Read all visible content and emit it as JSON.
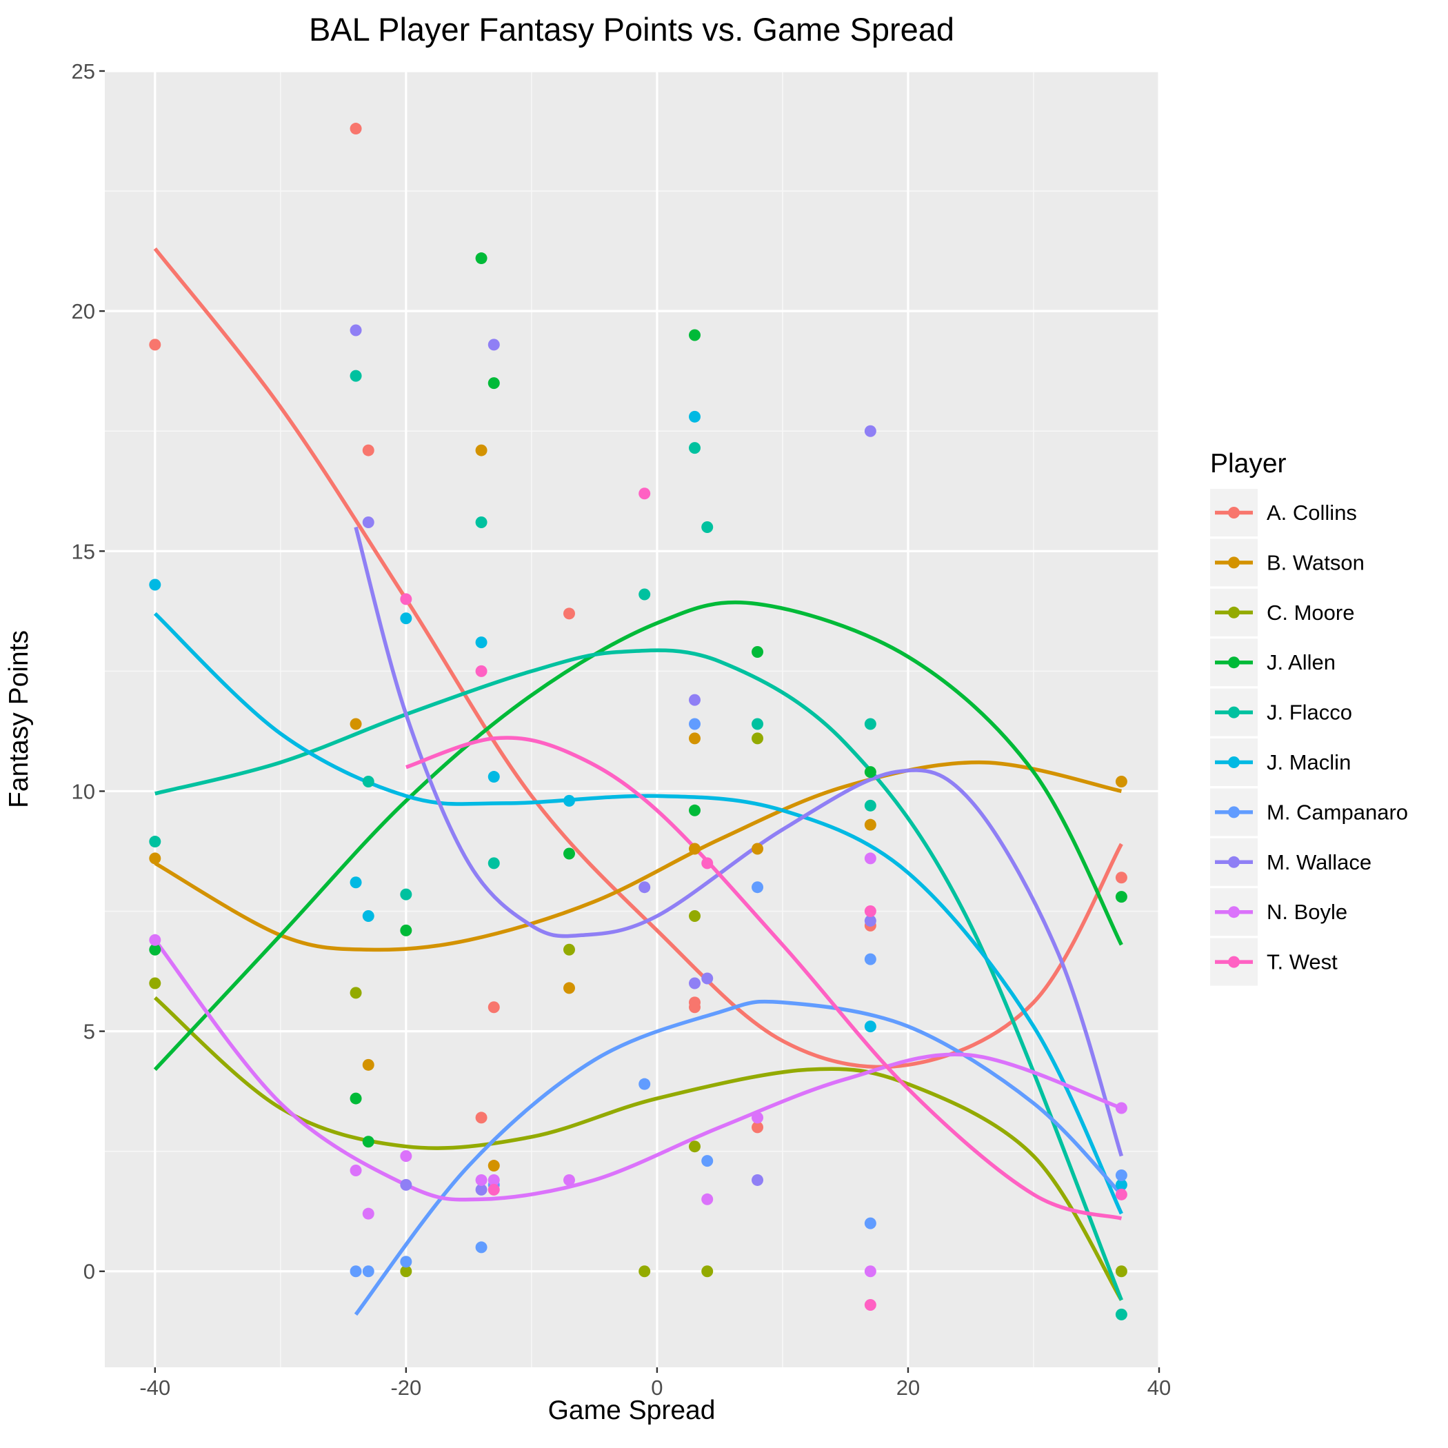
{
  "chart_data": {
    "type": "scatter",
    "title": "BAL Player Fantasy Points vs. Game Spread",
    "xlabel": "Game Spread",
    "ylabel": "Fantasy Points",
    "xlim": [
      -44,
      40
    ],
    "ylim": [
      -2,
      25
    ],
    "x_ticks": [
      -40,
      -20,
      0,
      20,
      40
    ],
    "y_ticks": [
      0,
      5,
      10,
      15,
      20,
      25
    ],
    "x_tick_labels": [
      "-40",
      "-20",
      "0",
      "20",
      "40"
    ],
    "y_tick_labels": [
      "0",
      "5",
      "10",
      "15",
      "20",
      "25"
    ],
    "grid": true,
    "legend": {
      "title": "Player",
      "position": "right"
    },
    "series": [
      {
        "name": "A. Collins",
        "color": "#F8766D",
        "points": [
          [
            -40,
            19.3
          ],
          [
            -24,
            23.8
          ],
          [
            -23,
            17.1
          ],
          [
            -14,
            3.2
          ],
          [
            -13,
            5.5
          ],
          [
            -7,
            13.7
          ],
          [
            3,
            5.6
          ],
          [
            3,
            5.5
          ],
          [
            8,
            3.0
          ],
          [
            17,
            7.2
          ],
          [
            37,
            8.2
          ]
        ],
        "curve": [
          [
            -40,
            21.3
          ],
          [
            -30,
            18.0
          ],
          [
            -20,
            14.0
          ],
          [
            -10,
            9.9
          ],
          [
            0,
            7.1
          ],
          [
            10,
            4.8
          ],
          [
            20,
            4.3
          ],
          [
            30,
            5.6
          ],
          [
            37,
            8.9
          ]
        ]
      },
      {
        "name": "B. Watson",
        "color": "#D39200",
        "points": [
          [
            -40,
            8.6
          ],
          [
            -24,
            11.4
          ],
          [
            -23,
            4.3
          ],
          [
            -14,
            17.1
          ],
          [
            -13,
            2.2
          ],
          [
            -7,
            5.9
          ],
          [
            3,
            11.1
          ],
          [
            3,
            8.8
          ],
          [
            8,
            8.8
          ],
          [
            17,
            9.3
          ],
          [
            37,
            10.2
          ]
        ],
        "curve": [
          [
            -40,
            8.5
          ],
          [
            -30,
            7.0
          ],
          [
            -23,
            6.7
          ],
          [
            -15,
            6.9
          ],
          [
            -5,
            7.7
          ],
          [
            5,
            9.0
          ],
          [
            15,
            10.1
          ],
          [
            26,
            10.6
          ],
          [
            37,
            10.0
          ]
        ]
      },
      {
        "name": "C. Moore",
        "color": "#93AA00",
        "points": [
          [
            -40,
            6.0
          ],
          [
            -24,
            5.8
          ],
          [
            -20,
            0.0
          ],
          [
            -7,
            6.7
          ],
          [
            -1,
            0.0
          ],
          [
            3,
            7.4
          ],
          [
            3,
            2.6
          ],
          [
            4,
            0.0
          ],
          [
            8,
            11.1
          ],
          [
            37,
            0.0
          ]
        ],
        "curve": [
          [
            -40,
            5.7
          ],
          [
            -30,
            3.4
          ],
          [
            -20,
            2.6
          ],
          [
            -10,
            2.8
          ],
          [
            0,
            3.6
          ],
          [
            12,
            4.2
          ],
          [
            20,
            3.9
          ],
          [
            30,
            2.4
          ],
          [
            37,
            -0.6
          ]
        ]
      },
      {
        "name": "J. Allen",
        "color": "#00BA38",
        "points": [
          [
            -40,
            6.7
          ],
          [
            -24,
            3.6
          ],
          [
            -23,
            2.7
          ],
          [
            -20,
            7.1
          ],
          [
            -14,
            21.1
          ],
          [
            -13,
            18.5
          ],
          [
            -7,
            8.7
          ],
          [
            3,
            19.5
          ],
          [
            3,
            9.6
          ],
          [
            8,
            12.9
          ],
          [
            17,
            10.4
          ],
          [
            37,
            7.8
          ]
        ],
        "curve": [
          [
            -40,
            4.2
          ],
          [
            -30,
            7.0
          ],
          [
            -20,
            9.8
          ],
          [
            -10,
            12.0
          ],
          [
            0,
            13.5
          ],
          [
            8,
            13.9
          ],
          [
            20,
            12.8
          ],
          [
            30,
            10.4
          ],
          [
            37,
            6.8
          ]
        ]
      },
      {
        "name": "J. Flacco",
        "color": "#00C19F",
        "points": [
          [
            -40,
            8.95
          ],
          [
            -24,
            18.65
          ],
          [
            -23,
            10.2
          ],
          [
            -20,
            7.85
          ],
          [
            -14,
            15.6
          ],
          [
            -13,
            8.5
          ],
          [
            -1,
            14.1
          ],
          [
            3,
            17.15
          ],
          [
            4,
            15.5
          ],
          [
            8,
            11.4
          ],
          [
            17,
            11.4
          ],
          [
            17,
            9.7
          ],
          [
            37,
            -0.9
          ]
        ],
        "curve": [
          [
            -40,
            9.95
          ],
          [
            -30,
            10.6
          ],
          [
            -20,
            11.6
          ],
          [
            -10,
            12.5
          ],
          [
            -3,
            12.9
          ],
          [
            5,
            12.7
          ],
          [
            15,
            11.0
          ],
          [
            25,
            7.2
          ],
          [
            37,
            -0.6
          ]
        ]
      },
      {
        "name": "J. Maclin",
        "color": "#00B9E3",
        "points": [
          [
            -40,
            14.3
          ],
          [
            -24,
            8.1
          ],
          [
            -23,
            7.4
          ],
          [
            -20,
            13.6
          ],
          [
            -14,
            13.1
          ],
          [
            -13,
            10.3
          ],
          [
            -7,
            9.8
          ],
          [
            3,
            17.8
          ],
          [
            17,
            5.1
          ],
          [
            37,
            1.8
          ]
        ],
        "curve": [
          [
            -40,
            13.7
          ],
          [
            -30,
            11.2
          ],
          [
            -20,
            9.9
          ],
          [
            -12,
            9.75
          ],
          [
            0,
            9.9
          ],
          [
            10,
            9.6
          ],
          [
            20,
            8.3
          ],
          [
            30,
            5.1
          ],
          [
            37,
            1.2
          ]
        ]
      },
      {
        "name": "M. Campanaro",
        "color": "#619CFF",
        "points": [
          [
            -24,
            0.0
          ],
          [
            -23,
            0.0
          ],
          [
            -20,
            0.2
          ],
          [
            -14,
            0.5
          ],
          [
            -13,
            1.8
          ],
          [
            -1,
            3.9
          ],
          [
            3,
            11.4
          ],
          [
            4,
            2.3
          ],
          [
            8,
            8.0
          ],
          [
            17,
            6.5
          ],
          [
            17,
            1.0
          ],
          [
            37,
            2.0
          ]
        ],
        "curve": [
          [
            -24,
            -0.9
          ],
          [
            -15,
            2.2
          ],
          [
            -5,
            4.4
          ],
          [
            5,
            5.4
          ],
          [
            10,
            5.6
          ],
          [
            20,
            5.1
          ],
          [
            30,
            3.5
          ],
          [
            37,
            1.6
          ]
        ]
      },
      {
        "name": "M. Wallace",
        "color": "#8F7FF5",
        "points": [
          [
            -24,
            19.6
          ],
          [
            -23,
            15.6
          ],
          [
            -20,
            1.8
          ],
          [
            -14,
            1.7
          ],
          [
            -13,
            19.3
          ],
          [
            -1,
            8.0
          ],
          [
            3,
            11.9
          ],
          [
            3,
            6.0
          ],
          [
            4,
            6.1
          ],
          [
            8,
            1.9
          ],
          [
            17,
            17.5
          ],
          [
            17,
            7.3
          ]
        ],
        "curve": [
          [
            -24,
            15.5
          ],
          [
            -20,
            11.6
          ],
          [
            -15,
            8.5
          ],
          [
            -10,
            7.2
          ],
          [
            -6,
            7.0
          ],
          [
            0,
            7.4
          ],
          [
            10,
            9.2
          ],
          [
            19,
            10.4
          ],
          [
            25,
            9.8
          ],
          [
            32,
            6.6
          ],
          [
            37,
            2.4
          ]
        ]
      },
      {
        "name": "N. Boyle",
        "color": "#DB72FB",
        "points": [
          [
            -40,
            6.9
          ],
          [
            -24,
            2.1
          ],
          [
            -23,
            1.2
          ],
          [
            -20,
            2.4
          ],
          [
            -14,
            1.9
          ],
          [
            -13,
            1.9
          ],
          [
            -7,
            1.9
          ],
          [
            4,
            1.5
          ],
          [
            8,
            3.2
          ],
          [
            17,
            8.6
          ],
          [
            17,
            0.0
          ],
          [
            37,
            3.4
          ]
        ],
        "curve": [
          [
            -40,
            6.9
          ],
          [
            -30,
            3.5
          ],
          [
            -20,
            1.8
          ],
          [
            -14,
            1.5
          ],
          [
            -5,
            1.9
          ],
          [
            5,
            3.0
          ],
          [
            15,
            4.0
          ],
          [
            25,
            4.5
          ],
          [
            37,
            3.4
          ]
        ]
      },
      {
        "name": "T. West",
        "color": "#FF61C3",
        "points": [
          [
            -20,
            14.0
          ],
          [
            -14,
            12.5
          ],
          [
            -13,
            1.7
          ],
          [
            -1,
            16.2
          ],
          [
            4,
            8.5
          ],
          [
            17,
            7.5
          ],
          [
            17,
            -0.7
          ],
          [
            37,
            1.6
          ]
        ],
        "curve": [
          [
            -20,
            10.5
          ],
          [
            -13,
            11.1
          ],
          [
            -7,
            10.8
          ],
          [
            0,
            9.6
          ],
          [
            10,
            6.8
          ],
          [
            20,
            3.8
          ],
          [
            30,
            1.6
          ],
          [
            37,
            1.1
          ]
        ]
      }
    ]
  }
}
